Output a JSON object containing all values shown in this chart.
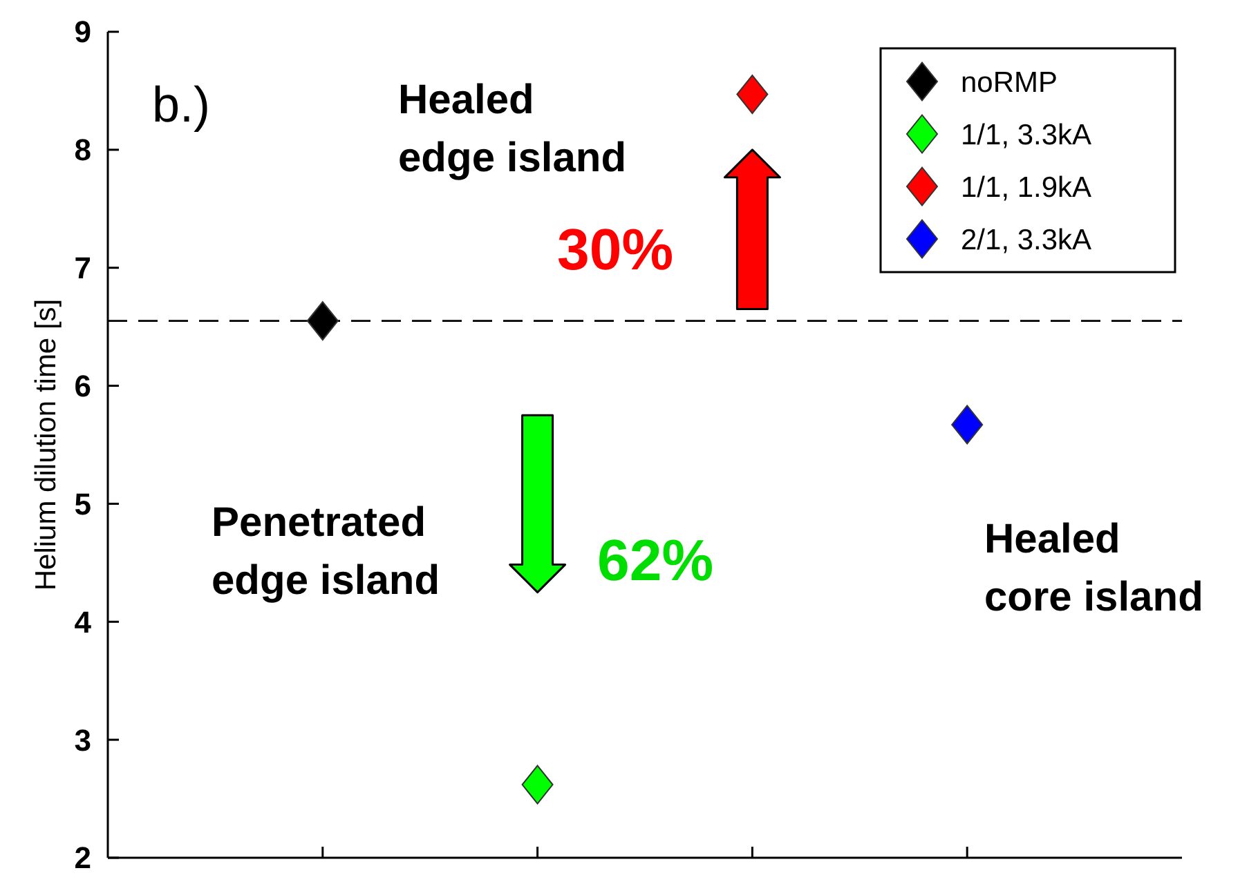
{
  "chart_data": {
    "type": "scatter",
    "ylabel": "Helium dilution time [s]",
    "categories": [
      null,
      null,
      null,
      null
    ],
    "series": [
      {
        "name": "noRMP",
        "color": "#000000",
        "values": [
          6.55,
          null,
          null,
          null
        ]
      },
      {
        "name": "1/1, 3.3kA",
        "color": "#00ff00",
        "values": [
          null,
          2.62,
          null,
          null
        ]
      },
      {
        "name": "1/1, 1.9kA",
        "color": "#ff0000",
        "values": [
          null,
          null,
          8.47,
          null
        ]
      },
      {
        "name": "2/1, 3.3kA",
        "color": "#0000ff",
        "values": [
          null,
          null,
          null,
          5.67
        ]
      }
    ],
    "ylim": [
      2,
      9
    ],
    "yticks": [
      2,
      3,
      4,
      5,
      6,
      7,
      8,
      9
    ],
    "marker": "diamond",
    "legend": "top right",
    "grid": false,
    "ref_lines": [
      {
        "axis": "y",
        "value": 6.55,
        "line_style": "dashed",
        "color": "#000000"
      }
    ],
    "annotations": [
      "b.)",
      "Healed\nedge island",
      "30%",
      "Penetrated\nedge island",
      "62%",
      "Healed\ncore island"
    ]
  }
}
